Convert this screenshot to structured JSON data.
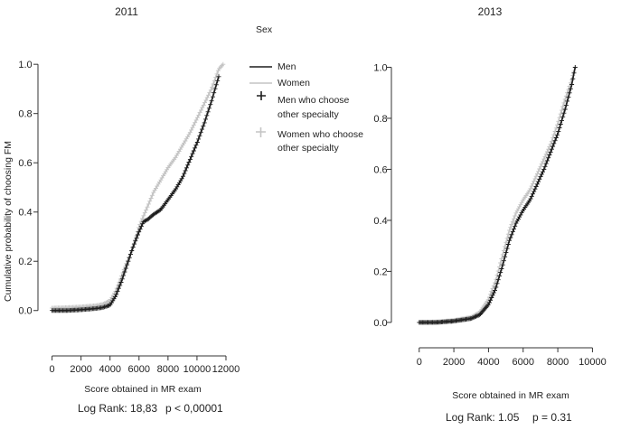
{
  "legend": {
    "title": "Sex",
    "entries": [
      {
        "label": "Men",
        "symbol": "line",
        "color": "#1e1e1e"
      },
      {
        "label": "Women",
        "symbol": "line",
        "color": "#c4c4c4"
      },
      {
        "label": "Men who choose other specialty",
        "label_lines": [
          "Men who choose",
          "other specialty"
        ],
        "symbol": "plus",
        "color": "#1e1e1e"
      },
      {
        "label": "Women who choose other specialty",
        "label_lines": [
          "Women who choose",
          "other specialty"
        ],
        "symbol": "plus",
        "color": "#c4c4c4"
      }
    ]
  },
  "colors": {
    "men": "#1e1e1e",
    "women": "#c4c4c4",
    "axis": "#333333"
  },
  "chart_data": [
    {
      "type": "line",
      "title": "2011",
      "xlabel": "Score obtained in MR exam",
      "ylabel": "Cumulative probability of choosing FM",
      "xlim": [
        -100,
        12500
      ],
      "ylim": [
        -0.1,
        1.03
      ],
      "xticks": [
        0,
        2000,
        4000,
        6000,
        8000,
        10000,
        12000
      ],
      "yticks": [
        0.0,
        0.2,
        0.4,
        0.6,
        0.8,
        1.0
      ],
      "ytick_labels": [
        "0.0",
        "0.2",
        "0.4",
        "0.6",
        "0.8",
        "1.0"
      ],
      "grid": false,
      "legend_position": "right",
      "series": [
        {
          "name": "Men",
          "x": [
            0,
            1000,
            2000,
            3000,
            3500,
            4000,
            4400,
            4800,
            5200,
            5600,
            6000,
            6300,
            6600,
            7000,
            7500,
            8000,
            8500,
            9000,
            9500,
            10000,
            10500,
            11000,
            11500
          ],
          "y": [
            0.0,
            0.0,
            0.003,
            0.008,
            0.012,
            0.022,
            0.06,
            0.12,
            0.19,
            0.26,
            0.32,
            0.36,
            0.37,
            0.39,
            0.41,
            0.45,
            0.49,
            0.54,
            0.61,
            0.68,
            0.76,
            0.85,
            0.95
          ]
        },
        {
          "name": "Women",
          "x": [
            0,
            1000,
            2000,
            3000,
            3500,
            4000,
            4400,
            4800,
            5200,
            5600,
            6000,
            6500,
            7000,
            7500,
            8000,
            8500,
            9000,
            9500,
            10000,
            10500,
            11000,
            11500,
            11800
          ],
          "y": [
            0.01,
            0.012,
            0.015,
            0.02,
            0.025,
            0.04,
            0.08,
            0.14,
            0.2,
            0.26,
            0.34,
            0.41,
            0.48,
            0.53,
            0.58,
            0.62,
            0.67,
            0.72,
            0.78,
            0.84,
            0.9,
            0.98,
            1.0
          ]
        }
      ],
      "annotation": {
        "log_rank_label": "Log Rank: 18,83",
        "p_label": "p < 0,00001"
      }
    },
    {
      "type": "line",
      "title": "2013",
      "xlabel": "Score obtained in MR exam",
      "ylabel": "",
      "xlim": [
        -300,
        10500
      ],
      "ylim": [
        -0.05,
        1.03
      ],
      "xticks": [
        0,
        2000,
        4000,
        6000,
        8000,
        10000
      ],
      "yticks": [
        0.0,
        0.2,
        0.4,
        0.6,
        0.8,
        1.0
      ],
      "ytick_labels": [
        "0.0",
        "0.2",
        "0.4",
        "0.6",
        "0.8",
        "1.0"
      ],
      "grid": false,
      "legend_position": "none",
      "series": [
        {
          "name": "Men",
          "x": [
            0,
            1000,
            2000,
            3000,
            3500,
            4000,
            4400,
            4800,
            5200,
            5600,
            6000,
            6400,
            6800,
            7200,
            7600,
            8000,
            8400,
            8800,
            9000
          ],
          "y": [
            0.0,
            0.0,
            0.005,
            0.015,
            0.03,
            0.07,
            0.13,
            0.22,
            0.32,
            0.39,
            0.44,
            0.48,
            0.54,
            0.6,
            0.67,
            0.74,
            0.83,
            0.93,
            1.0
          ]
        },
        {
          "name": "Women",
          "x": [
            0,
            1000,
            2000,
            3000,
            3500,
            4000,
            4400,
            4800,
            5200,
            5600,
            6000,
            6400,
            6800,
            7200,
            7600,
            8000,
            8400,
            8800,
            9000
          ],
          "y": [
            0.0,
            0.002,
            0.008,
            0.02,
            0.04,
            0.09,
            0.16,
            0.26,
            0.36,
            0.43,
            0.48,
            0.52,
            0.58,
            0.64,
            0.7,
            0.78,
            0.87,
            0.95,
            1.0
          ]
        }
      ],
      "annotation": {
        "log_rank_label": "Log Rank: 1.05",
        "p_label": "p = 0.31"
      }
    }
  ]
}
